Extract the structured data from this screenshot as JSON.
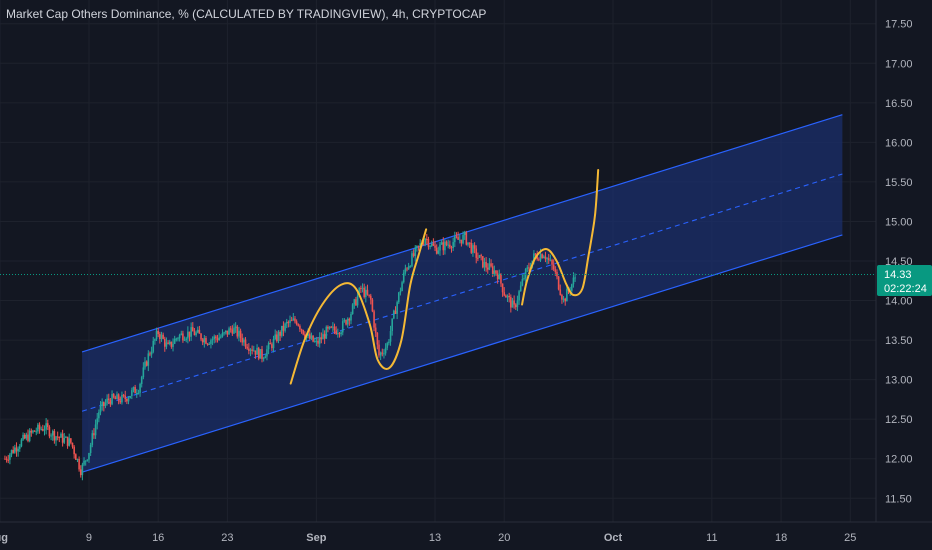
{
  "header": {
    "title": "Market Cap Others Dominance, % (CALCULATED BY TRADINGVIEW), 4h, CRYPTOCAP"
  },
  "price_badge": {
    "value": "14.33",
    "countdown": "02:22:24"
  },
  "colors": {
    "background": "#131722",
    "grid": "#1e222d",
    "bullish": "#26a69a",
    "bearish": "#ef5350",
    "channel_line": "#2962ff",
    "channel_fill": "#1b2f6b",
    "projection": "#f5b935",
    "price_line": "#089981"
  },
  "chart_data": {
    "type": "candlestick",
    "title": "Market Cap Others Dominance, % (CALCULATED BY TRADINGVIEW), 4h, CRYPTOCAP",
    "y_ticks": [
      "11.50",
      "12.00",
      "12.50",
      "13.00",
      "13.50",
      "14.00",
      "14.50",
      "15.00",
      "15.50",
      "16.00",
      "16.50",
      "17.00",
      "17.50"
    ],
    "ylim": [
      11.2,
      17.8
    ],
    "x_ticks": [
      {
        "label": "Aug",
        "day": 0
      },
      {
        "label": "9",
        "day": 9
      },
      {
        "label": "16",
        "day": 16
      },
      {
        "label": "23",
        "day": 23
      },
      {
        "label": "Sep",
        "day": 32
      },
      {
        "label": "13",
        "day": 44
      },
      {
        "label": "20",
        "day": 51
      },
      {
        "label": "Oct",
        "day": 62
      },
      {
        "label": "11",
        "day": 72
      },
      {
        "label": "18",
        "day": 79
      },
      {
        "label": "25",
        "day": 86
      }
    ],
    "x_range_days": [
      0,
      88.6
    ],
    "last_price": 14.33,
    "price_path": [
      [
        0.5,
        12.0
      ],
      [
        2,
        12.2
      ],
      [
        3.5,
        12.35
      ],
      [
        4.5,
        12.4
      ],
      [
        5.5,
        12.3
      ],
      [
        7.2,
        12.2
      ],
      [
        8.2,
        11.85
      ],
      [
        9,
        12.1
      ],
      [
        10,
        12.6
      ],
      [
        11,
        12.75
      ],
      [
        12.5,
        12.75
      ],
      [
        14,
        12.9
      ],
      [
        15,
        13.3
      ],
      [
        16,
        13.6
      ],
      [
        17,
        13.4
      ],
      [
        18,
        13.55
      ],
      [
        19.5,
        13.6
      ],
      [
        21,
        13.5
      ],
      [
        22.5,
        13.55
      ],
      [
        23.5,
        13.65
      ],
      [
        25,
        13.45
      ],
      [
        26.5,
        13.3
      ],
      [
        27.5,
        13.45
      ],
      [
        29,
        13.7
      ],
      [
        30,
        13.75
      ],
      [
        31,
        13.55
      ],
      [
        32,
        13.45
      ],
      [
        33,
        13.6
      ],
      [
        34.5,
        13.65
      ],
      [
        35.5,
        13.85
      ],
      [
        36.5,
        14.15
      ],
      [
        37.5,
        14.0
      ],
      [
        38.3,
        13.3
      ],
      [
        39.2,
        13.45
      ],
      [
        40,
        13.9
      ],
      [
        41,
        14.4
      ],
      [
        42,
        14.6
      ],
      [
        43,
        14.8
      ],
      [
        44,
        14.65
      ],
      [
        45,
        14.7
      ],
      [
        46,
        14.75
      ],
      [
        47,
        14.8
      ],
      [
        48,
        14.6
      ],
      [
        49,
        14.45
      ],
      [
        50.3,
        14.35
      ],
      [
        51,
        14.1
      ],
      [
        52,
        13.9
      ],
      [
        53,
        14.3
      ],
      [
        54,
        14.55
      ],
      [
        55,
        14.6
      ],
      [
        56,
        14.4
      ],
      [
        57,
        14.0
      ],
      [
        57.8,
        14.2
      ],
      [
        58.3,
        14.33
      ]
    ],
    "channel": {
      "start_day": 8.3,
      "end_day": 85.2,
      "upper": [
        13.35,
        16.35
      ],
      "middle": [
        12.6,
        15.6
      ],
      "lower": [
        11.83,
        14.83
      ]
    },
    "projection_paths": [
      [
        [
          29.4,
          12.95
        ],
        [
          30.8,
          13.5
        ],
        [
          32.6,
          13.95
        ],
        [
          34.5,
          14.2
        ],
        [
          36,
          14.15
        ],
        [
          37.4,
          13.7
        ],
        [
          38.2,
          13.25
        ],
        [
          39.4,
          13.15
        ],
        [
          40.6,
          13.5
        ],
        [
          41.5,
          14.2
        ],
        [
          42.4,
          14.6
        ],
        [
          43.1,
          14.9
        ]
      ],
      [
        [
          52.8,
          13.95
        ],
        [
          53.3,
          14.25
        ],
        [
          54.2,
          14.55
        ],
        [
          55.3,
          14.65
        ],
        [
          56.3,
          14.5
        ],
        [
          57.3,
          14.2
        ],
        [
          58,
          14.07
        ],
        [
          58.9,
          14.15
        ],
        [
          59.5,
          14.55
        ],
        [
          60.1,
          15.0
        ],
        [
          60.3,
          15.25
        ],
        [
          60.5,
          15.65
        ]
      ]
    ]
  }
}
